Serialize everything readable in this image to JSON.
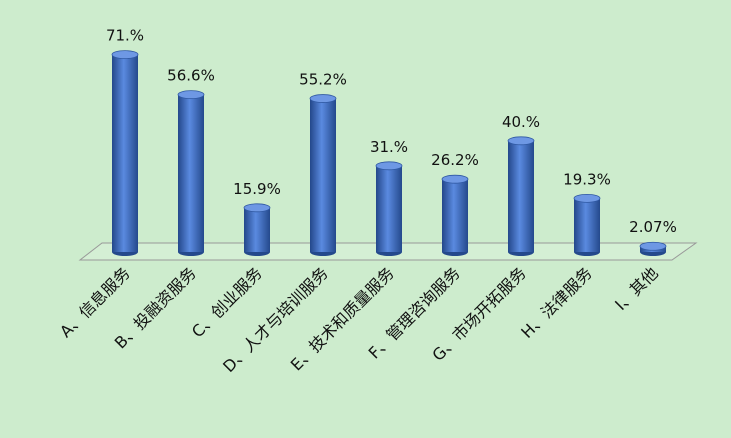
{
  "chart_data": {
    "type": "bar",
    "categories": [
      "A、信息服务",
      "B、投融资服务",
      "C、创业服务",
      "D、人才与培训服务",
      "E、技术和质量服务",
      "F、管理咨询服务",
      "G、市场开拓服务",
      "H、法律服务",
      "I、其他"
    ],
    "values": [
      71,
      56.6,
      15.9,
      55.2,
      31,
      26.2,
      40,
      19.3,
      2.07
    ],
    "value_labels": [
      "71.%",
      "56.6%",
      "15.9%",
      "55.2%",
      "31.%",
      "26.2%",
      "40.%",
      "19.3%",
      "2.07%"
    ],
    "color": "#3d6bc0"
  }
}
